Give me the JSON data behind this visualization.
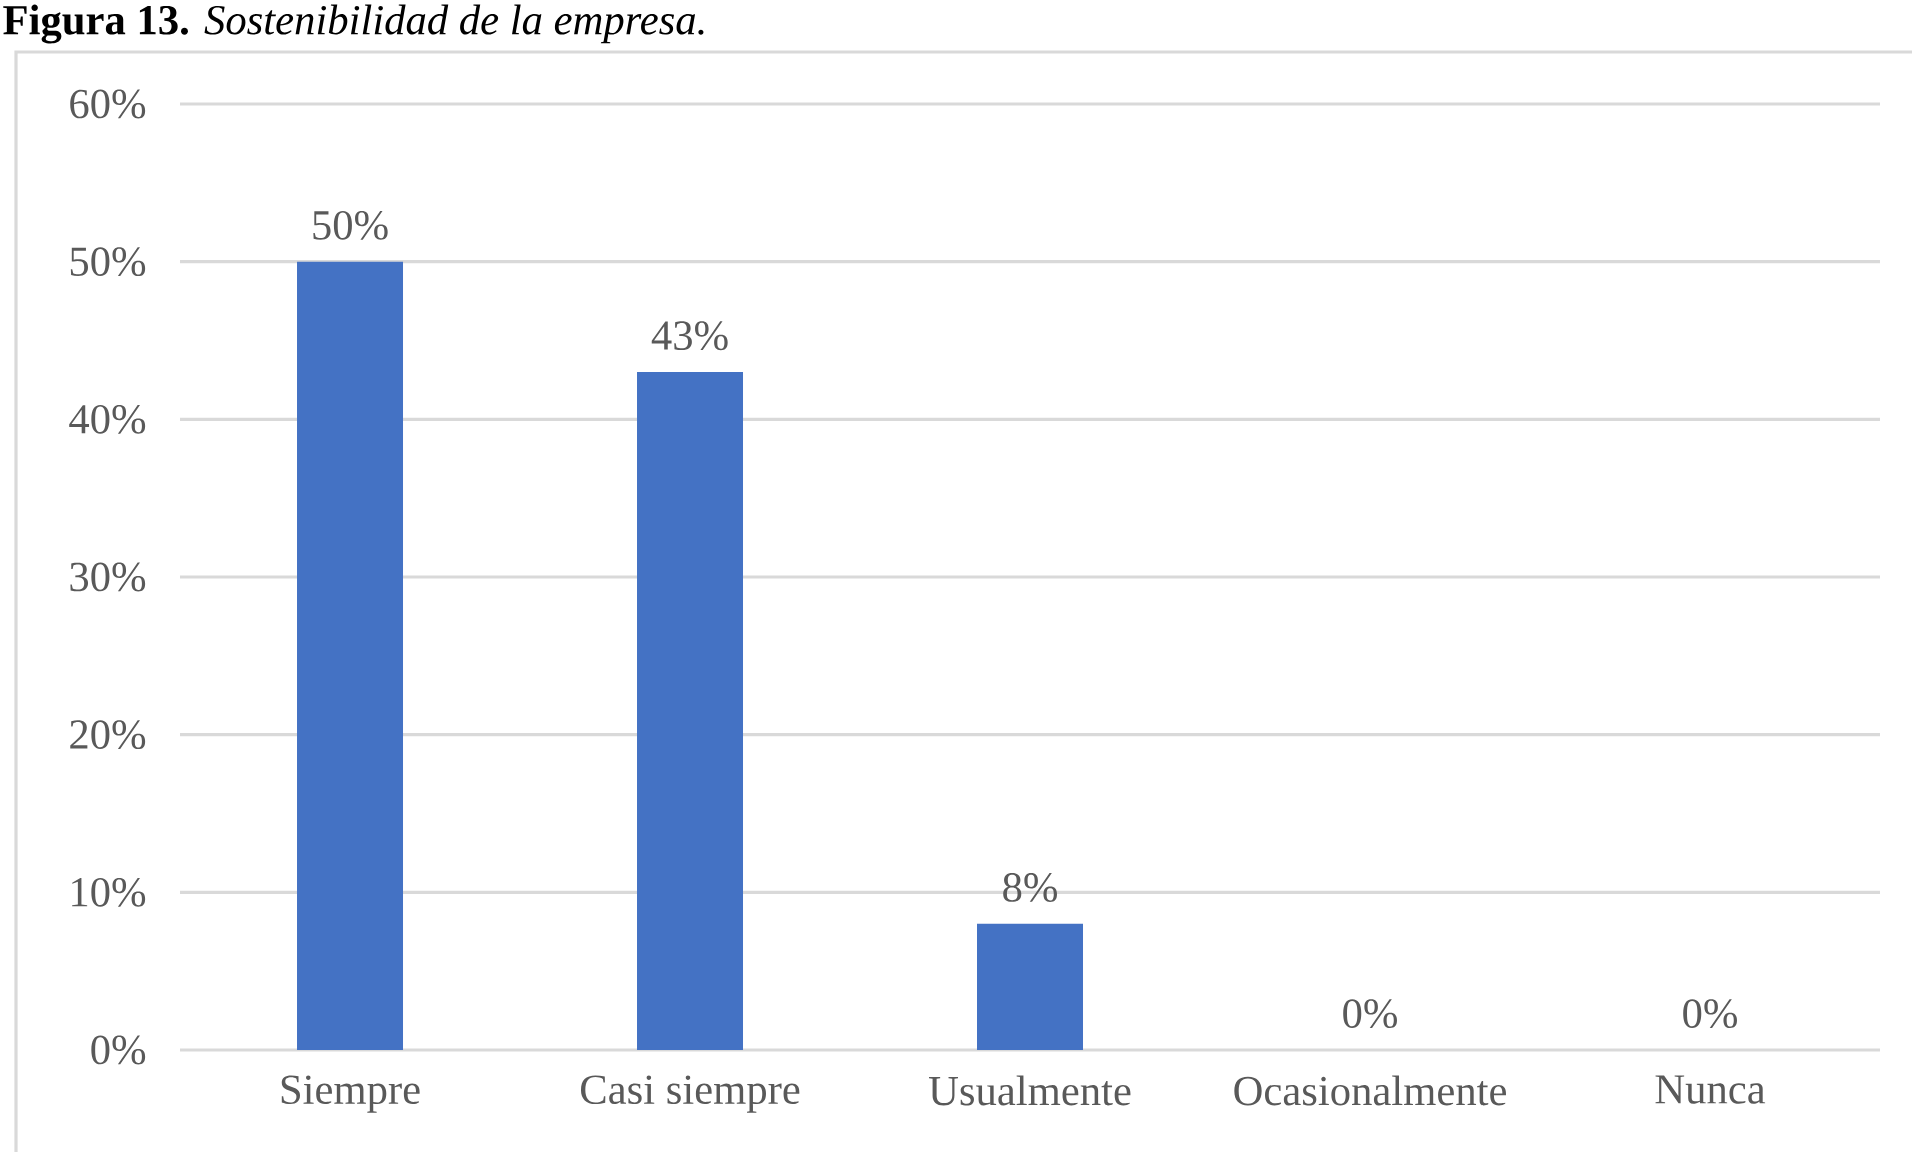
{
  "chart_data": {
    "type": "bar",
    "title": "**Figura 13.** *Sostenibilidad de la empresa.*",
    "categories": [
      "Siempre",
      "Casi siempre",
      "Usualmente",
      "Ocasionalmente",
      "Nunca"
    ],
    "values": [
      50,
      43,
      8,
      0,
      0
    ],
    "value_labels": [
      "50%",
      "43%",
      "8%",
      "0%",
      "0%"
    ],
    "color": "#4472c4",
    "ylim": [
      0,
      60
    ],
    "yticks": [
      {
        "value": 0,
        "label": "0%"
      },
      {
        "value": 10,
        "label": "10%"
      },
      {
        "value": 20,
        "label": "20%"
      },
      {
        "value": 30,
        "label": "30%"
      },
      {
        "value": 40,
        "label": "40%"
      },
      {
        "value": 50,
        "label": "50%"
      },
      {
        "value": 60,
        "label": "60%"
      }
    ],
    "grid": "y"
  }
}
